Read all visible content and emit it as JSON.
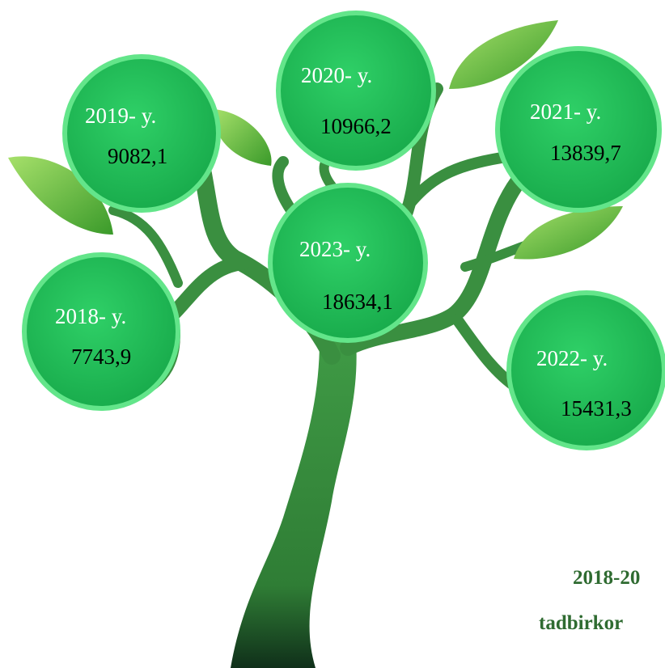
{
  "nodes": [
    {
      "year": "2019- y.",
      "value": "9082,1"
    },
    {
      "year": "2020- y.",
      "value": "10966,2"
    },
    {
      "year": "2021- y.",
      "value": "13839,7"
    },
    {
      "year": "2023- y.",
      "value": "18634,1"
    },
    {
      "year": "2018- y.",
      "value": "7743,9"
    },
    {
      "year": "2022- y.",
      "value": "15431,3"
    }
  ],
  "caption": {
    "line1": "2018-20",
    "line2": "tadbirkor"
  }
}
